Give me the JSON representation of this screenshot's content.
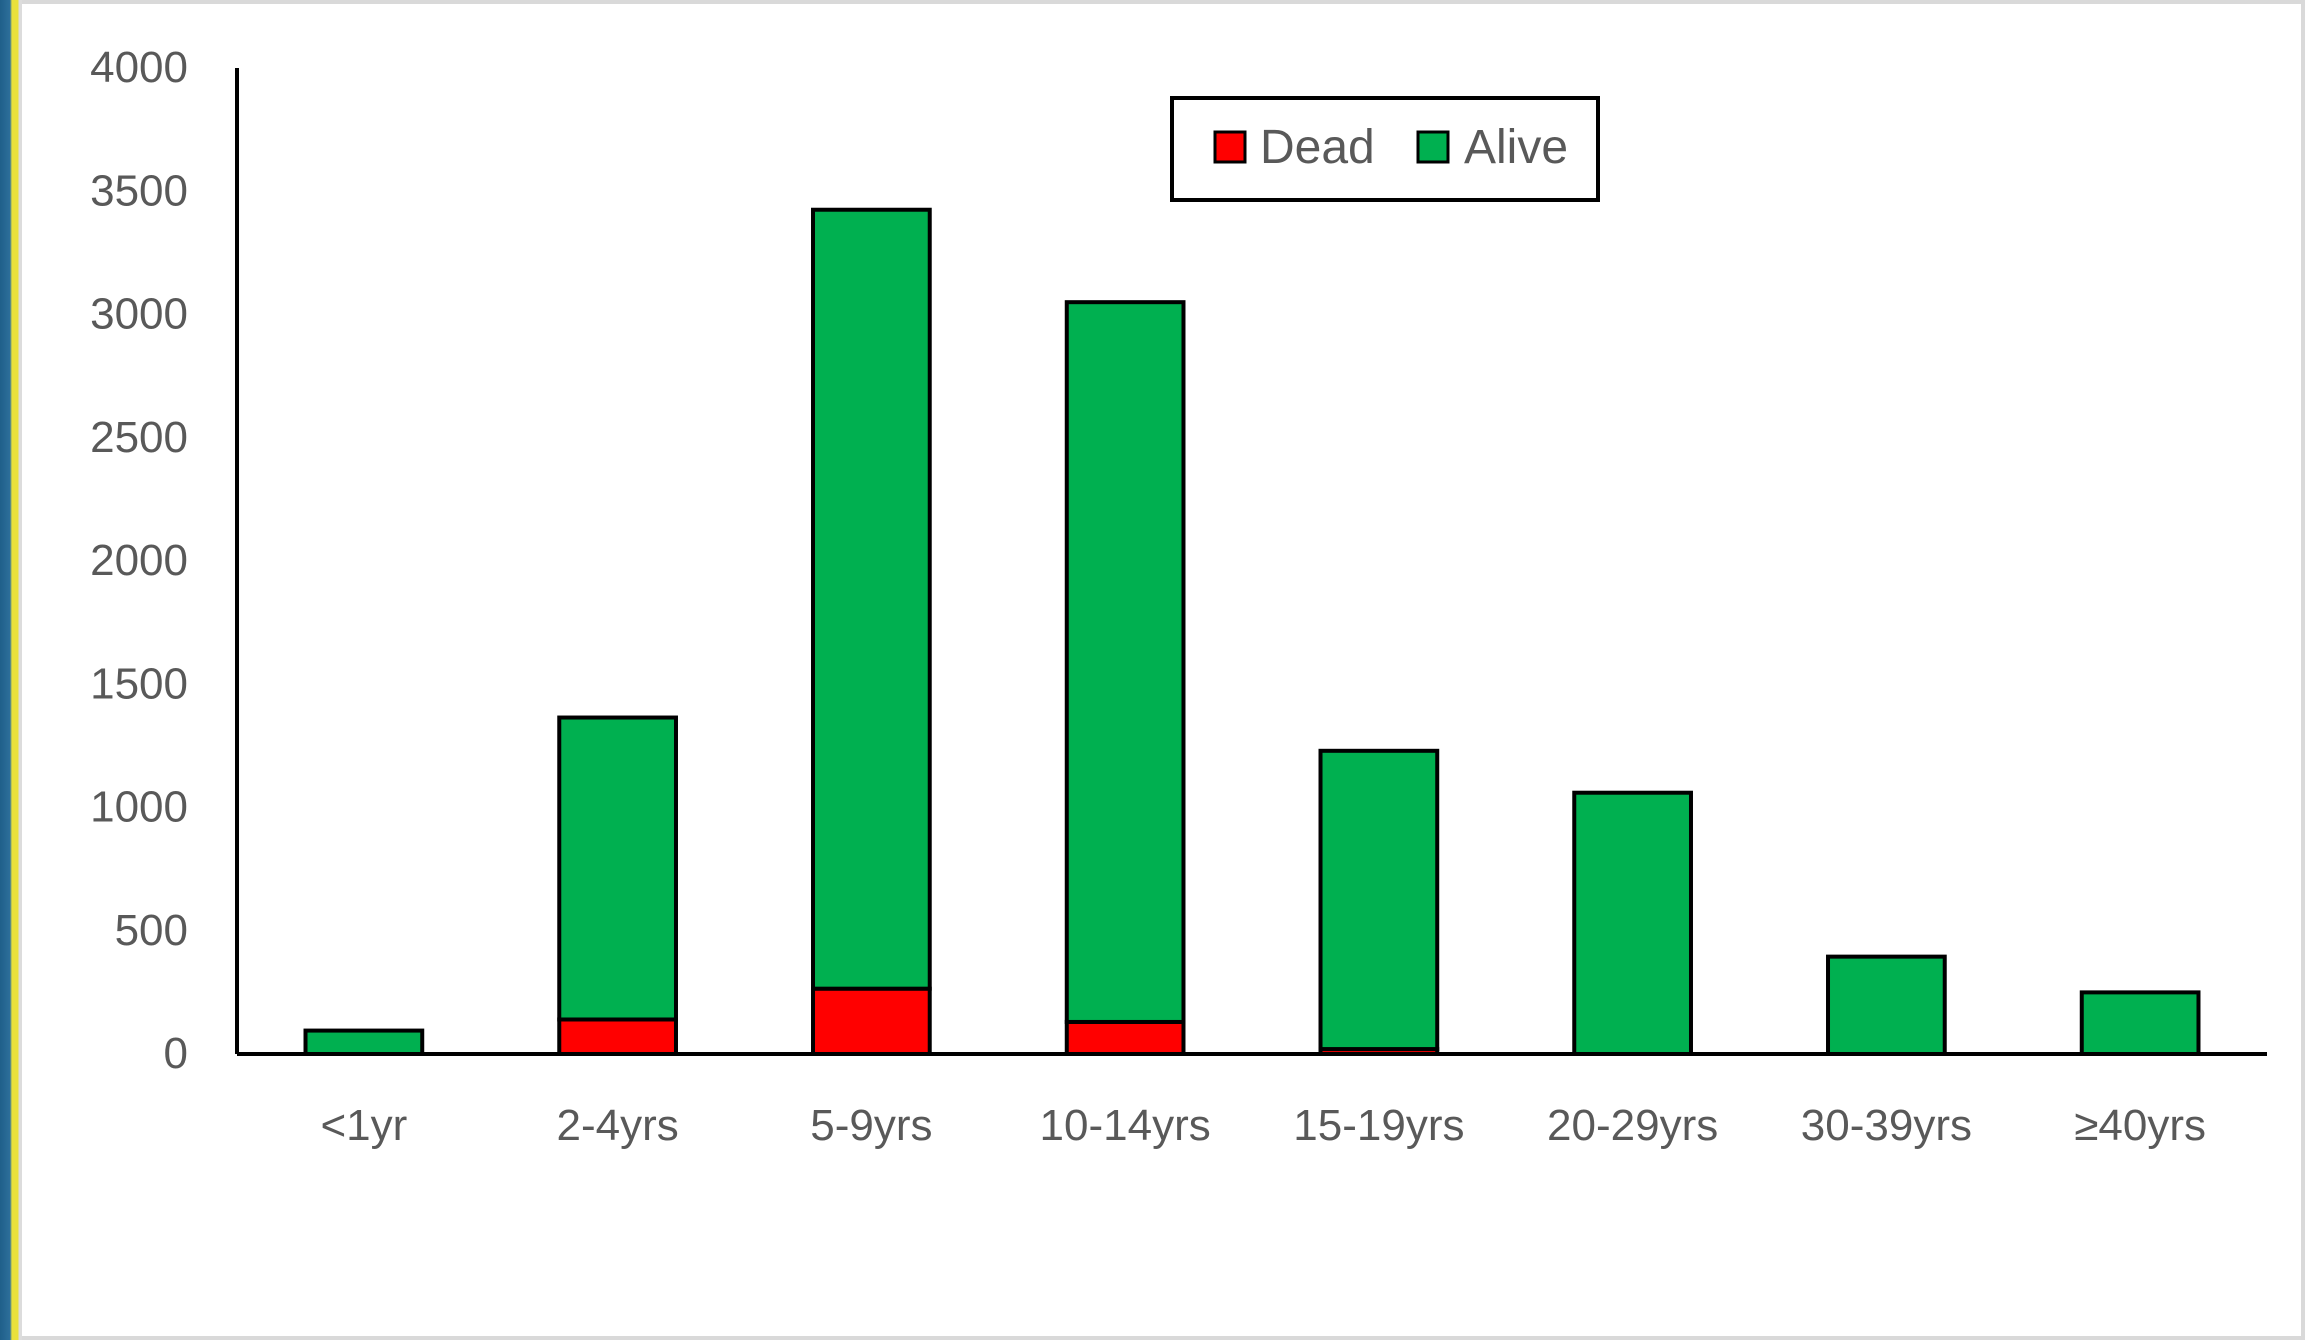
{
  "chart_data": {
    "type": "bar",
    "stacked": true,
    "title": "",
    "xlabel": "",
    "ylabel": "",
    "categories": [
      "<1yr",
      "2-4yrs",
      "5-9yrs",
      "10-14yrs",
      "15-19yrs",
      "20-29yrs",
      "30-39yrs",
      "≥40yrs"
    ],
    "series": [
      {
        "name": "Dead",
        "color": "#ff0000",
        "values": [
          0,
          140,
          265,
          130,
          20,
          0,
          0,
          0
        ]
      },
      {
        "name": "Alive",
        "color": "#00b050",
        "values": [
          95,
          1225,
          3160,
          2920,
          1210,
          1060,
          395,
          250
        ]
      }
    ],
    "ylim": [
      0,
      4000
    ],
    "yticks": [
      0,
      500,
      1000,
      1500,
      2000,
      2500,
      3000,
      3500,
      4000
    ],
    "grid": false,
    "legend": {
      "placement": "top-center",
      "entries": [
        "Dead",
        "Alive"
      ]
    }
  }
}
